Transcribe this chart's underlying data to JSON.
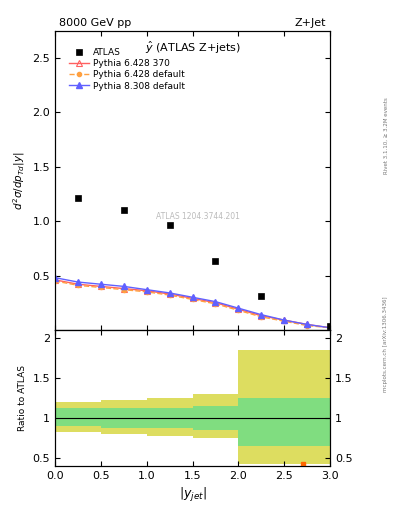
{
  "title_left": "8000 GeV pp",
  "title_right": "Z+Jet",
  "ylabel_main": "d²σ/dp_{Td}|y|",
  "ylabel_ratio": "Ratio to ATLAS",
  "xlabel": "|y_{jet}|",
  "rivet_label": "Rivet 3.1.10, ≥ 3.2M events",
  "mcplots_label": "mcplots.cern.ch [arXiv:1306.3436]",
  "subtitle": "j.y (ATLAS Z+jets)",
  "atlas_label": "ATLAS 1204.3744.201",
  "atlas_data_x": [
    0.25,
    0.75,
    1.25,
    1.75,
    2.25,
    3.0
  ],
  "atlas_data_y": [
    1.21,
    1.1,
    0.96,
    0.63,
    0.31,
    0.04
  ],
  "py6_370_x": [
    0.0,
    0.25,
    0.5,
    0.75,
    1.0,
    1.25,
    1.5,
    1.75,
    2.0,
    2.25,
    2.5,
    2.75,
    3.0
  ],
  "py6_370_y": [
    0.46,
    0.42,
    0.4,
    0.38,
    0.36,
    0.33,
    0.29,
    0.25,
    0.19,
    0.13,
    0.09,
    0.05,
    0.02
  ],
  "py6_def_x": [
    0.0,
    0.25,
    0.5,
    0.75,
    1.0,
    1.25,
    1.5,
    1.75,
    2.0,
    2.25,
    2.5,
    2.75,
    3.0
  ],
  "py6_def_y": [
    0.45,
    0.41,
    0.39,
    0.37,
    0.35,
    0.32,
    0.28,
    0.24,
    0.18,
    0.12,
    0.08,
    0.04,
    0.02
  ],
  "py8_def_x": [
    0.0,
    0.25,
    0.5,
    0.75,
    1.0,
    1.25,
    1.5,
    1.75,
    2.0,
    2.25,
    2.5,
    2.75,
    3.0
  ],
  "py8_def_y": [
    0.48,
    0.44,
    0.42,
    0.4,
    0.37,
    0.34,
    0.3,
    0.26,
    0.2,
    0.14,
    0.09,
    0.05,
    0.02
  ],
  "ratio_x_edges": [
    0.0,
    0.5,
    1.0,
    1.5,
    2.0,
    2.5,
    3.0
  ],
  "ratio_green_lo": [
    0.9,
    0.88,
    0.87,
    0.85,
    0.65,
    0.65
  ],
  "ratio_green_hi": [
    1.12,
    1.12,
    1.13,
    1.15,
    1.25,
    1.25
  ],
  "ratio_yellow_lo": [
    0.82,
    0.8,
    0.78,
    0.75,
    0.42,
    0.42
  ],
  "ratio_yellow_hi": [
    1.2,
    1.22,
    1.25,
    1.3,
    1.85,
    1.85
  ],
  "ratio_orange_x": 2.7,
  "ratio_orange_y": 0.42,
  "color_py6_370": "#ff6060",
  "color_py6_def": "#ffa040",
  "color_py8_def": "#6060ff",
  "color_green": "#80dd80",
  "color_yellow": "#dddd60",
  "ylim_main": [
    0,
    2.75
  ],
  "ylim_ratio": [
    0.4,
    2.1
  ],
  "xlim": [
    0,
    3.0
  ],
  "main_yticks": [
    0.5,
    1.0,
    1.5,
    2.0,
    2.5
  ],
  "ratio_yticks": [
    0.5,
    1.0,
    1.5,
    2.0
  ]
}
